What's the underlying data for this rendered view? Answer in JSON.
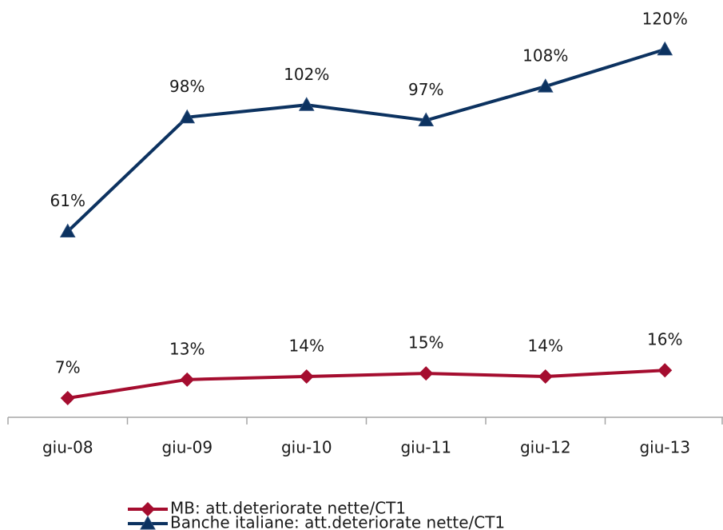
{
  "chart_data": {
    "type": "line",
    "categories": [
      "giu-08",
      "giu-09",
      "giu-10",
      "giu-11",
      "giu-12",
      "giu-13"
    ],
    "series": [
      {
        "name": "MB: att.deteriorate nette/CT1",
        "color": "#a50d2f",
        "marker": "diamond",
        "values": [
          7,
          13,
          14,
          15,
          14,
          16
        ],
        "value_labels": [
          "7%",
          "13%",
          "14%",
          "15%",
          "14%",
          "16%"
        ]
      },
      {
        "name": "Banche italiane: att.deteriorate nette/CT1",
        "color": "#0c3260",
        "marker": "triangle",
        "values": [
          61,
          98,
          102,
          97,
          108,
          120
        ],
        "value_labels": [
          "61%",
          "98%",
          "102%",
          "97%",
          "108%",
          "120%"
        ]
      }
    ],
    "ylim": [
      0,
      136
    ],
    "grid": false,
    "legend": "bottom"
  }
}
